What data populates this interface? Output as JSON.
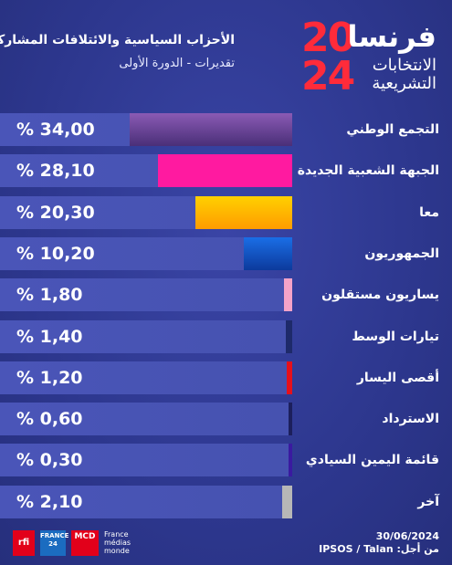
{
  "header": {
    "title": "الأحزاب السياسية والائتلافات المشاركة",
    "subtitle": "تقديرات - الدورة الأولى"
  },
  "logo": {
    "year_top": "20",
    "year_bottom": "24",
    "country": "فرنسا",
    "line1": "الانتخابات",
    "line2": "التشريعية"
  },
  "chart_data": {
    "type": "bar",
    "orientation": "horizontal",
    "max_value": 34.0,
    "categories": [
      "التجمع الوطني",
      "الجبهة الشعبية الجديدة",
      "معا",
      "الجمهوريون",
      "يساريون مستقلون",
      "تيارات الوسط",
      "أقصى اليسار",
      "الاسترداد",
      "قائمة اليمين السيادي",
      "آخر"
    ],
    "values": [
      34.0,
      28.1,
      20.3,
      10.2,
      1.8,
      1.4,
      1.2,
      0.6,
      0.3,
      2.1
    ],
    "value_labels": [
      "% 34,00",
      "% 28,10",
      "% 20,30",
      "% 10,20",
      "% 1,80",
      "% 1,40",
      "% 1,20",
      "% 0,60",
      "% 0,30",
      "% 2,10"
    ],
    "colors": [
      "#5a3c8c",
      "#ff1aa0",
      "#ffb800",
      "#1250c8",
      "#f4a3c8",
      "#1e2a6a",
      "#e5101c",
      "#1c1f5c",
      "#3a1aa0",
      "#b7b7b7"
    ],
    "color_gradients": {
      "0": [
        "#8a5ab4",
        "#4a2f78"
      ],
      "2": [
        "#ffd000",
        "#ff9c00"
      ],
      "3": [
        "#1a6ee6",
        "#0c3a9c"
      ]
    }
  },
  "footer": {
    "date": "30/06/2024",
    "source": "من أجل: IPSOS / Talan"
  },
  "partner_logos": {
    "rfi": "rfi",
    "france24": "FRANCE 24",
    "mcd": "MCD",
    "fmm": "France médias monde"
  }
}
